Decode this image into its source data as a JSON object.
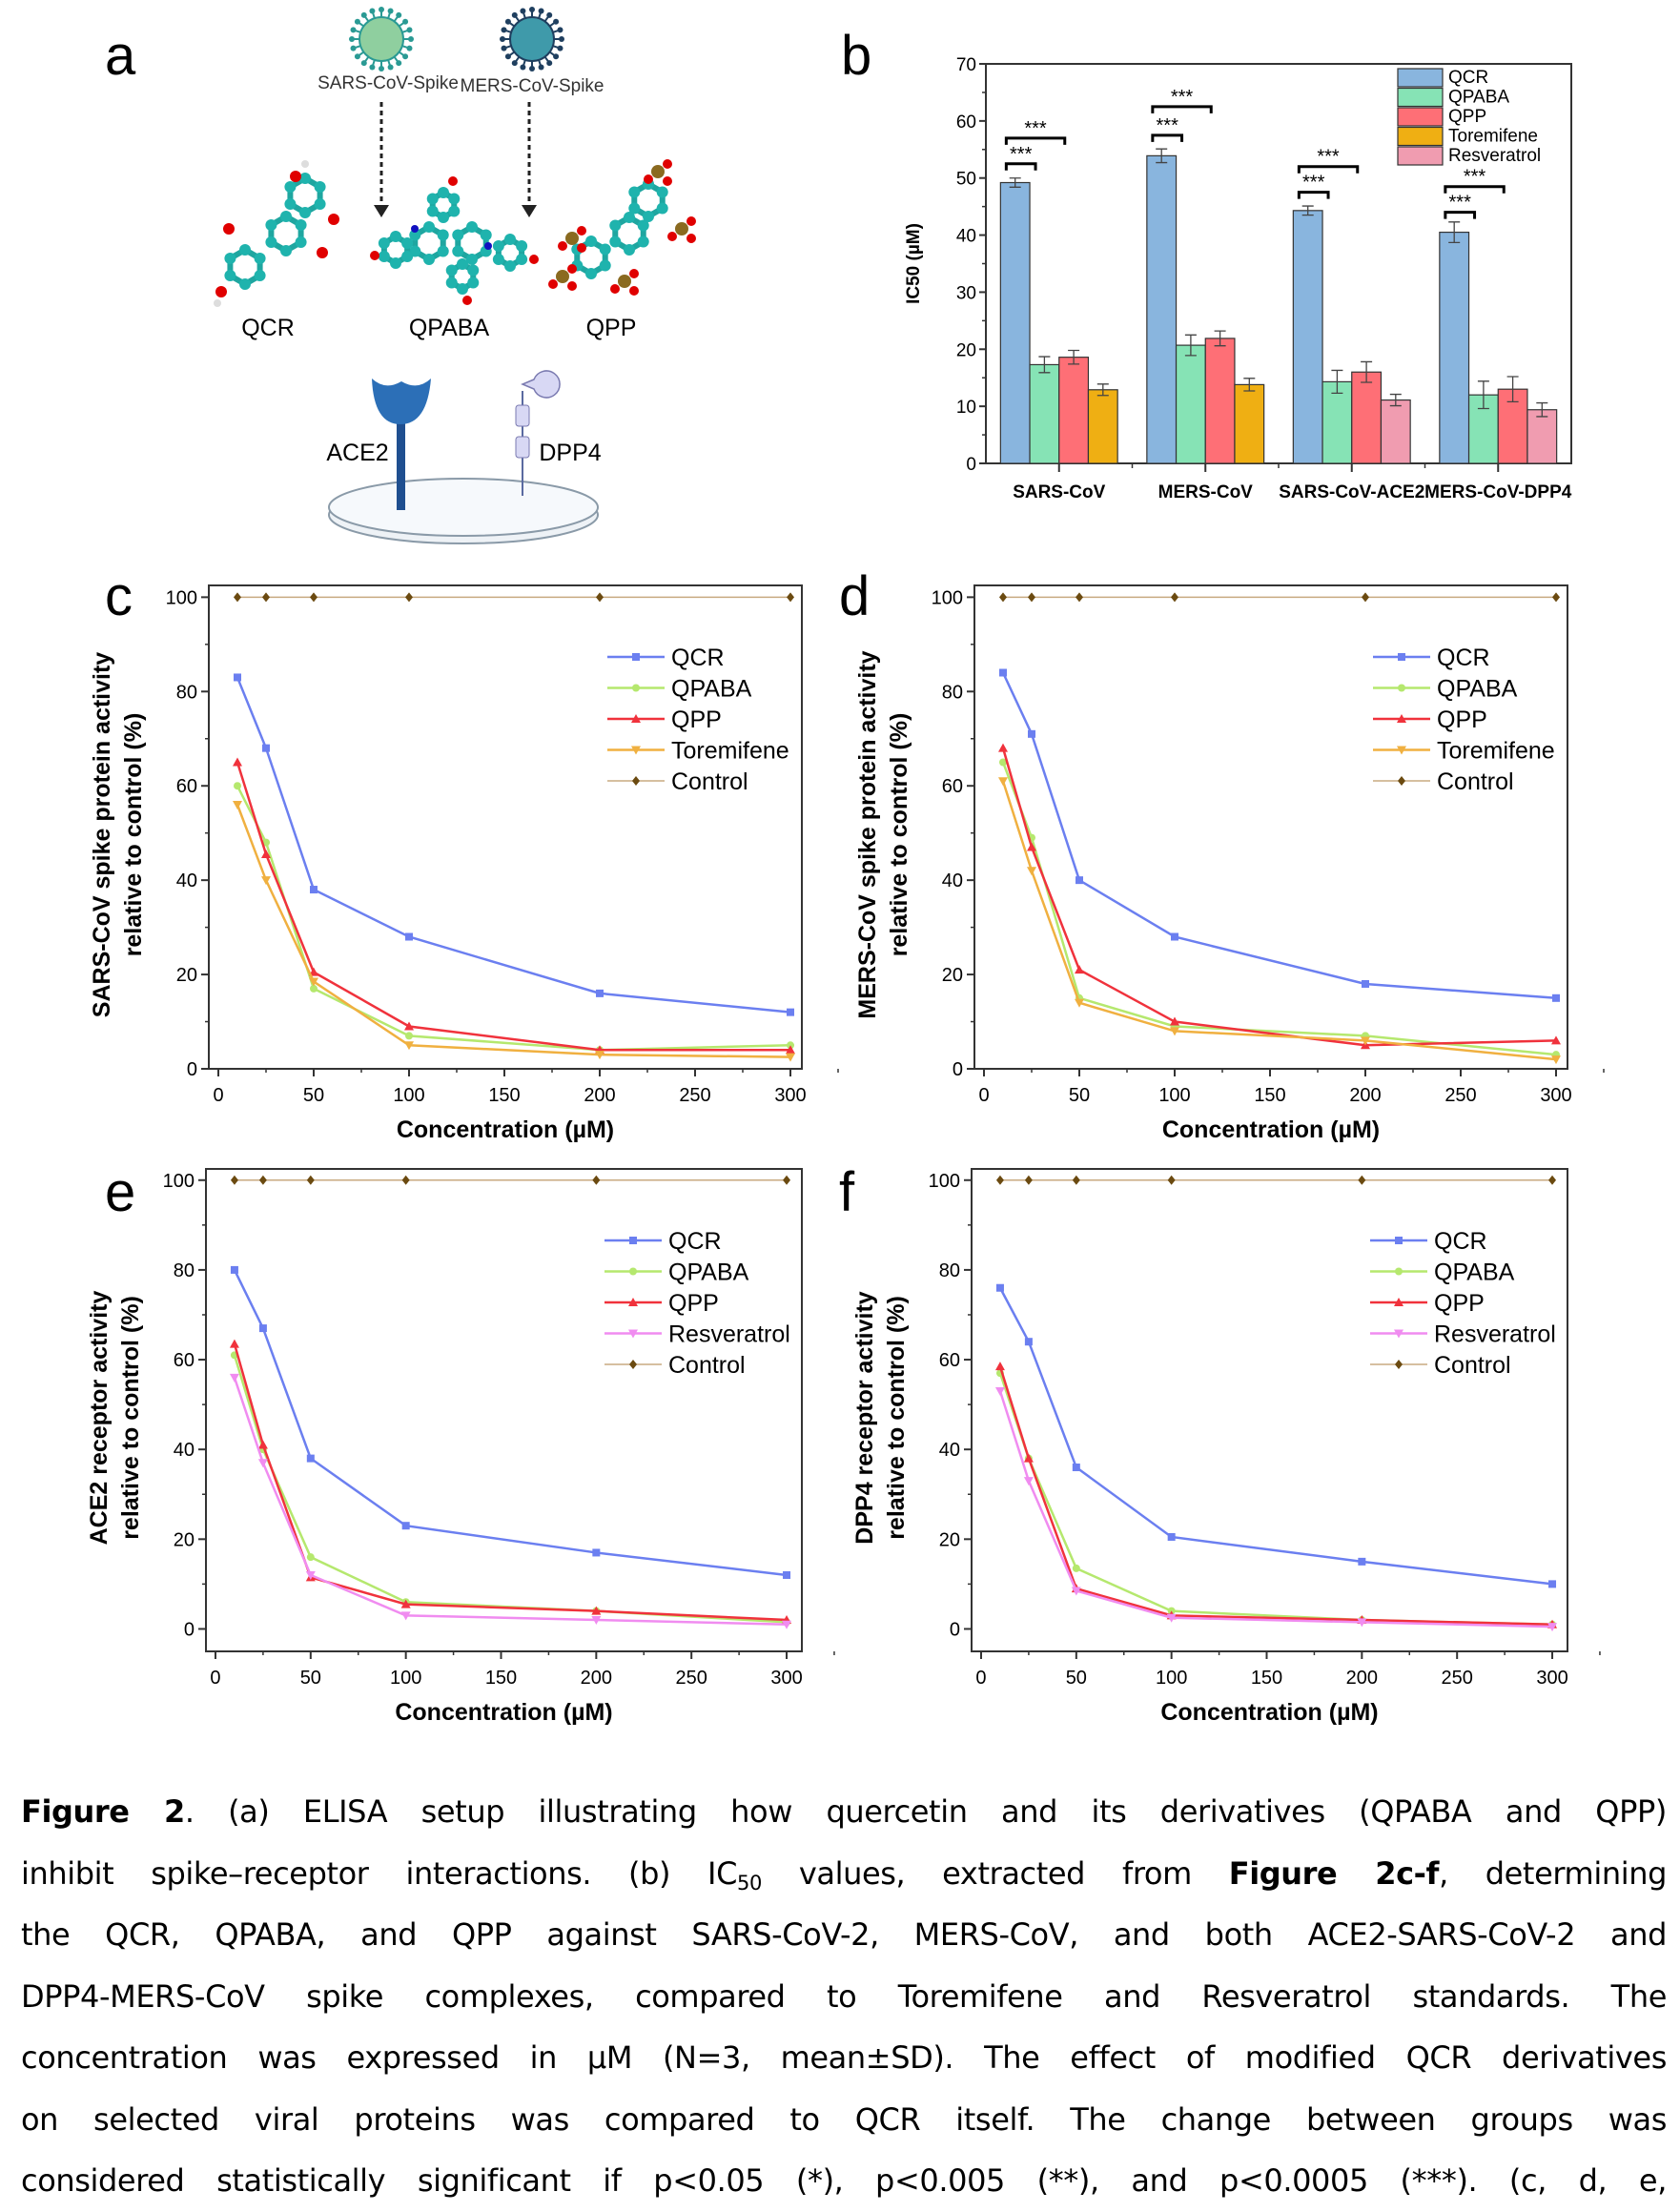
{
  "panel_labels": {
    "a": "a",
    "b": "b",
    "c": "c",
    "d": "d",
    "e": "e",
    "f": "f"
  },
  "schematic": {
    "viruses": [
      {
        "label": "SARS-CoV-Spike",
        "color": "#8fcf9f",
        "spike_color": "#2a9a94"
      },
      {
        "label": "MERS-CoV-Spike",
        "color": "#3f9aaa",
        "spike_color": "#1f3f5f"
      }
    ],
    "molecules": [
      "QCR",
      "QPABA",
      "QPP"
    ],
    "receptors": [
      {
        "label": "ACE2",
        "color": "#2c6fb7"
      },
      {
        "label": "DPP4",
        "color": "#d8d8f4"
      }
    ]
  },
  "chart_data": [
    {
      "panel": "b",
      "type": "bar",
      "ylabel": "IC50 (µM)",
      "xlabel": "",
      "ylim": [
        0,
        70
      ],
      "yticks": [
        0,
        10,
        20,
        30,
        40,
        50,
        60,
        70
      ],
      "grid": false,
      "legend_position": "top-right",
      "categories": [
        "SARS-CoV",
        "MERS-CoV",
        "SARS-CoV-ACE2",
        "MERS-CoV-DPP4"
      ],
      "legend": [
        {
          "name": "QCR",
          "color": "#89b5de"
        },
        {
          "name": "QPABA",
          "color": "#86e3b5"
        },
        {
          "name": "QPP",
          "color": "#fe6f76"
        },
        {
          "name": "Toremifene",
          "color": "#efaf13"
        },
        {
          "name": "Resveratrol",
          "color": "#f09cb0"
        }
      ],
      "groups": [
        {
          "bars": [
            {
              "name": "QCR",
              "value": 49.2,
              "sd": 0.8
            },
            {
              "name": "QPABA",
              "value": 17.3,
              "sd": 1.4
            },
            {
              "name": "QPP",
              "value": 18.6,
              "sd": 1.2
            },
            {
              "name": "Toremifene",
              "value": 12.9,
              "sd": 1.0
            }
          ],
          "significance": [
            {
              "from": "QCR",
              "to": "QPABA",
              "level": 52.5,
              "label": "***"
            },
            {
              "from": "QCR",
              "to": "QPP",
              "level": 57,
              "label": "***"
            }
          ]
        },
        {
          "bars": [
            {
              "name": "QCR",
              "value": 53.9,
              "sd": 1.2
            },
            {
              "name": "QPABA",
              "value": 20.7,
              "sd": 1.8
            },
            {
              "name": "QPP",
              "value": 21.9,
              "sd": 1.3
            },
            {
              "name": "Toremifene",
              "value": 13.8,
              "sd": 1.1
            }
          ],
          "significance": [
            {
              "from": "QCR",
              "to": "QPABA",
              "level": 57.5,
              "label": "***"
            },
            {
              "from": "QCR",
              "to": "QPP",
              "level": 62.5,
              "label": "***"
            }
          ]
        },
        {
          "bars": [
            {
              "name": "QCR",
              "value": 44.3,
              "sd": 0.8
            },
            {
              "name": "QPABA",
              "value": 14.3,
              "sd": 2.0
            },
            {
              "name": "QPP",
              "value": 16.0,
              "sd": 1.8
            },
            {
              "name": "Resveratrol",
              "value": 11.1,
              "sd": 1.0
            }
          ],
          "significance": [
            {
              "from": "QCR",
              "to": "QPABA",
              "level": 47.5,
              "label": "***"
            },
            {
              "from": "QCR",
              "to": "QPP",
              "level": 52,
              "label": "***"
            }
          ]
        },
        {
          "bars": [
            {
              "name": "QCR",
              "value": 40.5,
              "sd": 1.8
            },
            {
              "name": "QPABA",
              "value": 12.0,
              "sd": 2.4
            },
            {
              "name": "QPP",
              "value": 13.0,
              "sd": 2.2
            },
            {
              "name": "Resveratrol",
              "value": 9.4,
              "sd": 1.2
            }
          ],
          "significance": [
            {
              "from": "QCR",
              "to": "QPABA",
              "level": 44,
              "label": "***"
            },
            {
              "from": "QCR",
              "to": "QPP",
              "level": 48.5,
              "label": "***"
            }
          ]
        }
      ]
    },
    {
      "panel": "c",
      "type": "line",
      "ylabel": [
        "SARS-CoV spike protein activity",
        "relative to control (%)"
      ],
      "xlabel": "Concentration (µM)",
      "xlim": [
        -5,
        306
      ],
      "ylim": [
        0,
        102.5
      ],
      "xticks": [
        0,
        50,
        100,
        150,
        200,
        250,
        300
      ],
      "yticks": [
        0,
        20,
        40,
        60,
        80,
        100
      ],
      "grid": false,
      "legend_position": "upper-right",
      "x": [
        10,
        25,
        50,
        100,
        200,
        300
      ],
      "series": [
        {
          "name": "QCR",
          "color": "#6b7ff0",
          "marker": "square",
          "values": [
            83,
            68,
            38,
            28,
            16,
            12
          ]
        },
        {
          "name": "QPABA",
          "color": "#b5e86e",
          "marker": "circle",
          "values": [
            60,
            48,
            17,
            7,
            4,
            5
          ]
        },
        {
          "name": "QPP",
          "color": "#f0323c",
          "marker": "triangle-up",
          "values": [
            65,
            45.5,
            20.5,
            9,
            4,
            4
          ]
        },
        {
          "name": "Toremifene",
          "color": "#f0b040",
          "marker": "triangle-down",
          "values": [
            56,
            40,
            18.5,
            5,
            3,
            2.5
          ]
        },
        {
          "name": "Control",
          "color": "#c8aa80",
          "marker": "diamond",
          "values": [
            100,
            100,
            100,
            100,
            100,
            100
          ]
        }
      ]
    },
    {
      "panel": "d",
      "type": "line",
      "ylabel": [
        "MERS-CoV spike protein activity",
        "relative to control (%)"
      ],
      "xlabel": "Concentration (µM)",
      "xlim": [
        -5,
        306
      ],
      "ylim": [
        0,
        102.5
      ],
      "xticks": [
        0,
        50,
        100,
        150,
        200,
        250,
        300
      ],
      "yticks": [
        0,
        20,
        40,
        60,
        80,
        100
      ],
      "grid": false,
      "legend_position": "upper-right",
      "x": [
        10,
        25,
        50,
        100,
        200,
        300
      ],
      "series": [
        {
          "name": "QCR",
          "color": "#6b7ff0",
          "marker": "square",
          "values": [
            84,
            71,
            40,
            28,
            18,
            15
          ]
        },
        {
          "name": "QPABA",
          "color": "#b5e86e",
          "marker": "circle",
          "values": [
            65,
            49,
            15,
            9,
            7,
            3
          ]
        },
        {
          "name": "QPP",
          "color": "#f0323c",
          "marker": "triangle-up",
          "values": [
            68,
            47,
            21,
            10,
            5,
            6
          ]
        },
        {
          "name": "Toremifene",
          "color": "#f0b040",
          "marker": "triangle-down",
          "values": [
            61,
            42,
            14,
            8,
            6,
            2
          ]
        },
        {
          "name": "Control",
          "color": "#c8aa80",
          "marker": "diamond",
          "values": [
            100,
            100,
            100,
            100,
            100,
            100
          ]
        }
      ]
    },
    {
      "panel": "e",
      "type": "line",
      "ylabel": [
        "ACE2 receptor activity",
        "relative to control (%)"
      ],
      "xlabel": "Concentration (µM)",
      "xlim": [
        -5,
        308
      ],
      "ylim": [
        -5,
        102.5
      ],
      "xticks": [
        0,
        50,
        100,
        150,
        200,
        250,
        300
      ],
      "yticks": [
        0,
        20,
        40,
        60,
        80,
        100
      ],
      "grid": false,
      "legend_position": "upper-right",
      "x": [
        10,
        25,
        50,
        100,
        200,
        300
      ],
      "series": [
        {
          "name": "QCR",
          "color": "#6b7ff0",
          "marker": "square",
          "values": [
            80,
            67,
            38,
            23,
            17,
            12
          ]
        },
        {
          "name": "QPABA",
          "color": "#b5e86e",
          "marker": "circle",
          "values": [
            61,
            40,
            16,
            6,
            4,
            1.5
          ]
        },
        {
          "name": "QPP",
          "color": "#f0323c",
          "marker": "triangle-up",
          "values": [
            63.5,
            41,
            11.5,
            5.5,
            4,
            2
          ]
        },
        {
          "name": "Resveratrol",
          "color": "#f08cf0",
          "marker": "triangle-down",
          "values": [
            56,
            37,
            12,
            3,
            2,
            1
          ]
        },
        {
          "name": "Control",
          "color": "#c8aa80",
          "marker": "diamond",
          "values": [
            100,
            100,
            100,
            100,
            100,
            100
          ]
        }
      ]
    },
    {
      "panel": "f",
      "type": "line",
      "ylabel": [
        "DPP4 receptor activity",
        "relative to control (%)"
      ],
      "xlabel": "Concentration (µM)",
      "xlim": [
        -5,
        308
      ],
      "ylim": [
        -5,
        102.5
      ],
      "xticks": [
        0,
        50,
        100,
        150,
        200,
        250,
        300
      ],
      "yticks": [
        0,
        20,
        40,
        60,
        80,
        100
      ],
      "grid": false,
      "legend_position": "upper-right",
      "x": [
        10,
        25,
        50,
        100,
        200,
        300
      ],
      "series": [
        {
          "name": "QCR",
          "color": "#6b7ff0",
          "marker": "square",
          "values": [
            76,
            64,
            36,
            20.5,
            15,
            10
          ]
        },
        {
          "name": "QPABA",
          "color": "#b5e86e",
          "marker": "circle",
          "values": [
            57,
            38,
            13.5,
            4,
            2,
            1
          ]
        },
        {
          "name": "QPP",
          "color": "#f0323c",
          "marker": "triangle-up",
          "values": [
            58.5,
            38,
            9,
            3,
            2,
            1
          ]
        },
        {
          "name": "Resveratrol",
          "color": "#f08cf0",
          "marker": "triangle-down",
          "values": [
            53,
            33,
            8.5,
            2.5,
            1.5,
            0.5
          ]
        },
        {
          "name": "Control",
          "color": "#c8aa80",
          "marker": "diamond",
          "values": [
            100,
            100,
            100,
            100,
            100,
            100
          ]
        }
      ]
    }
  ],
  "caption": {
    "lines": [
      [
        {
          "t": "Figure 2",
          "b": true
        },
        {
          "t": ". (a) ELISA setup illustrating how quercetin and its derivatives (QPABA and QPP)"
        }
      ],
      [
        {
          "t": "inhibit spike–receptor interactions. (b) IC"
        },
        {
          "t": "50",
          "sub": true
        },
        {
          "t": " values, extracted from "
        },
        {
          "t": "Figure 2c-f",
          "b": true
        },
        {
          "t": ", determining"
        }
      ],
      [
        {
          "t": "the QCR, QPABA, and QPP against SARS-CoV-2, MERS-CoV, and both ACE2-SARS-CoV-2 and"
        }
      ],
      [
        {
          "t": "DPP4-MERS-CoV spike complexes, compared to Toremifene and Resveratrol standards. The"
        }
      ],
      [
        {
          "t": "concentration was expressed in µM (N=3, mean±SD). The effect of modified QCR derivatives"
        }
      ],
      [
        {
          "t": "on selected viral proteins was compared to QCR itself. The change between groups was"
        }
      ],
      [
        {
          "t": "considered statistically significant if p<0.05 (*), p<0.005 (**), and p<0.0005 (***). (c, d, e,"
        }
      ]
    ]
  }
}
